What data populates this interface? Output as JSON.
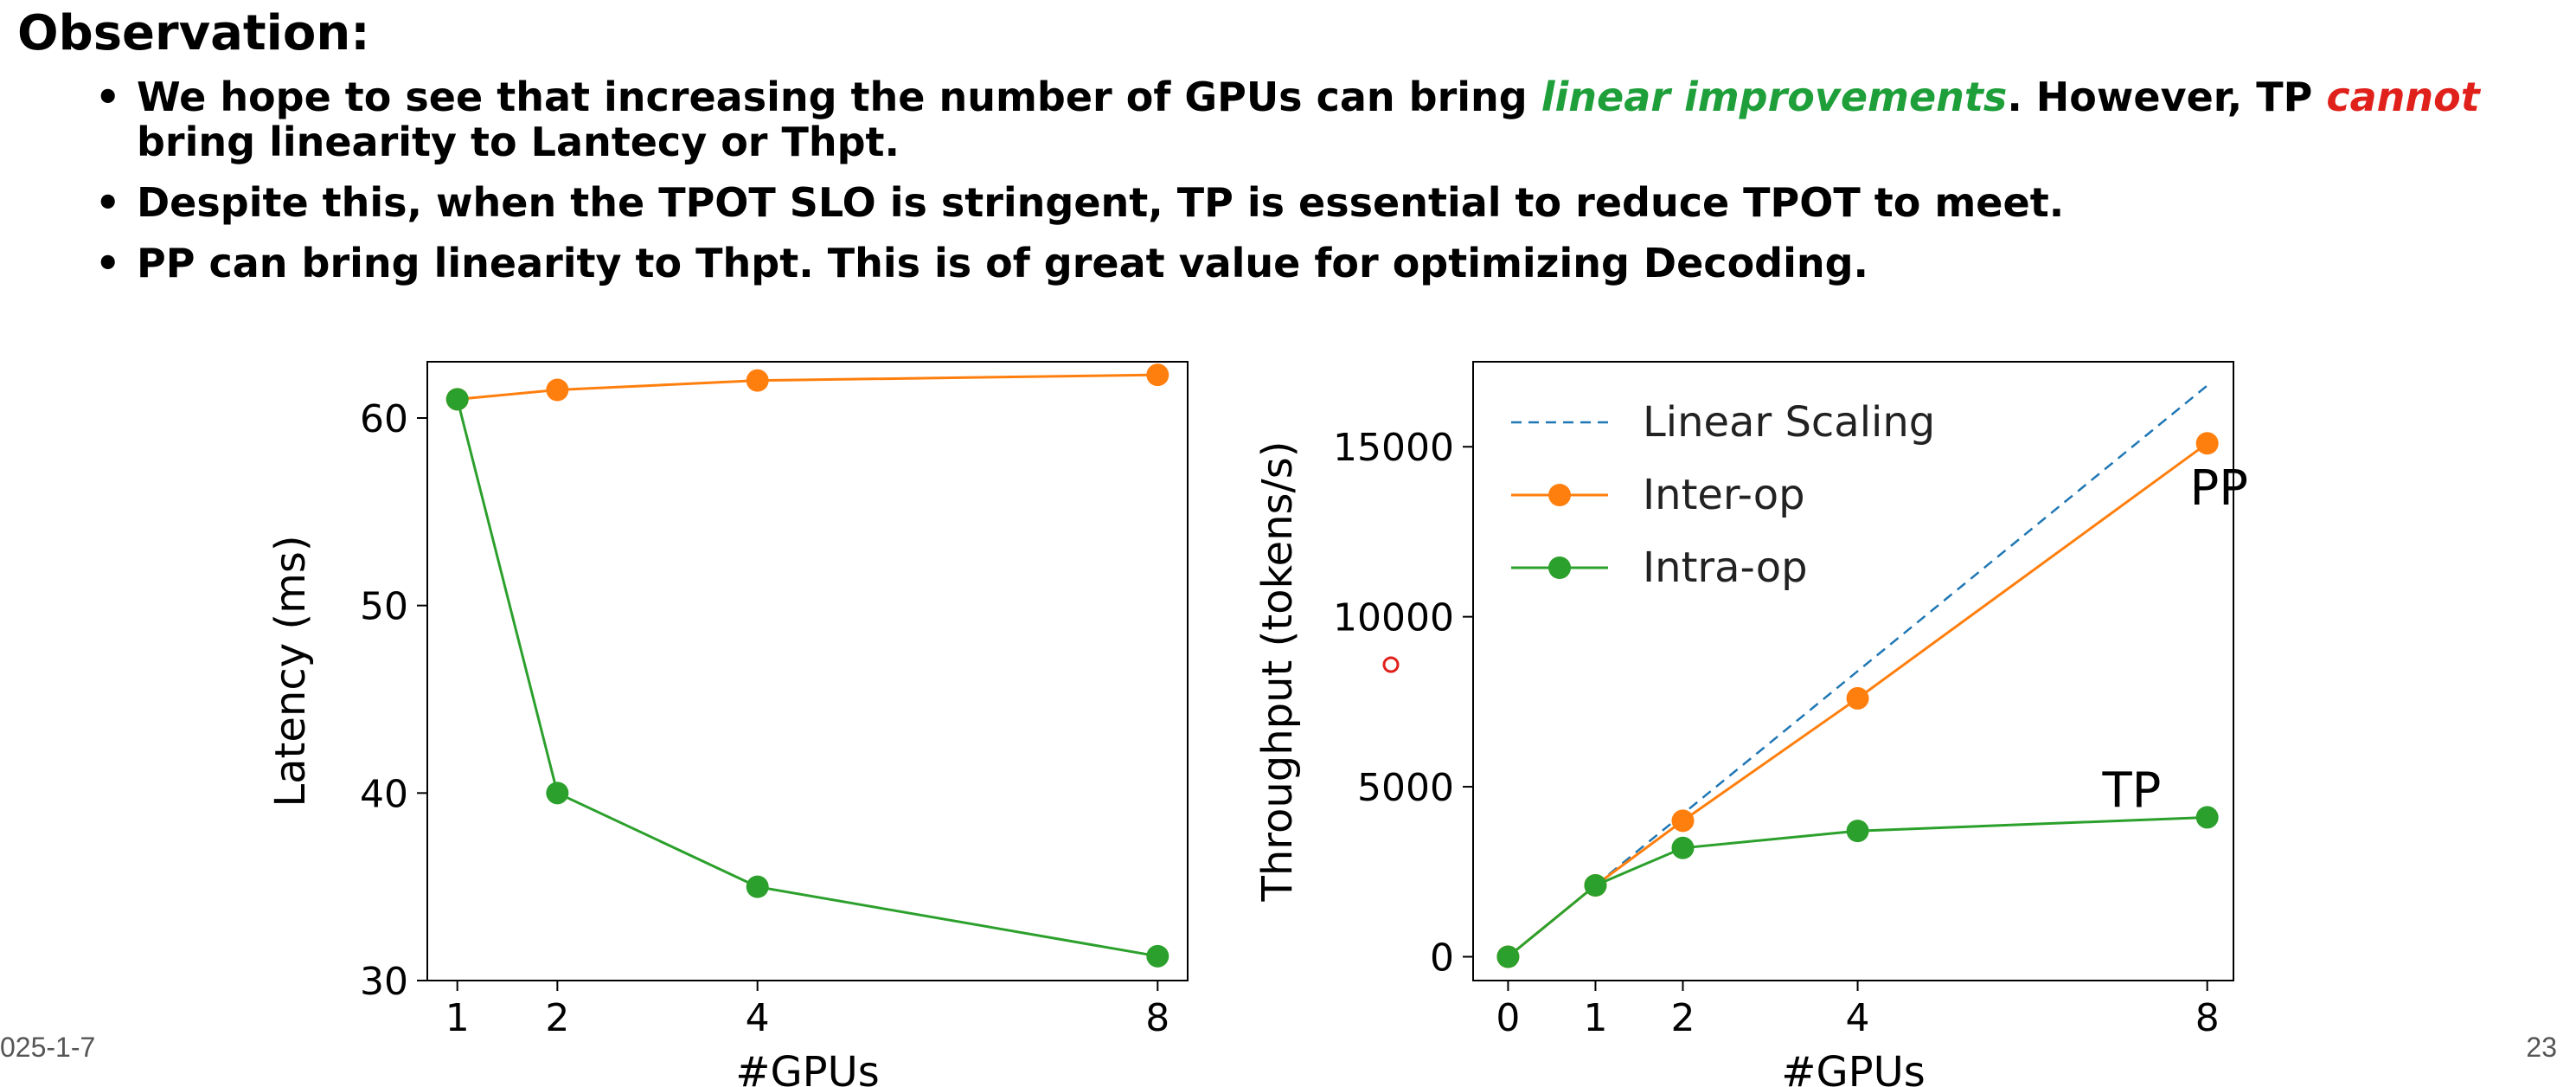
{
  "slide": {
    "heading": "Observation:",
    "bullets": [
      {
        "parts": [
          {
            "text": "We hope to see that increasing the number of GPUs can bring ",
            "style": "normal"
          },
          {
            "text": "linear improvements",
            "style": "green"
          },
          {
            "text": ". However, TP ",
            "style": "normal"
          },
          {
            "text": "cannot",
            "style": "red"
          },
          {
            "text": " bring linearity to Lantecy or Thpt.",
            "style": "normal"
          }
        ]
      },
      {
        "parts": [
          {
            "text": "Despite this, when the TPOT SLO is stringent, TP is essential to reduce TPOT to meet.",
            "style": "normal"
          }
        ]
      },
      {
        "parts": [
          {
            "text": "PP can bring linearity to Thpt. This is of great value for optimizing Decoding.",
            "style": "normal"
          }
        ]
      }
    ],
    "footer_date": "025-1-7",
    "page_number": "23"
  },
  "chart_data": [
    {
      "type": "line",
      "xlabel": "#GPUs",
      "ylabel": "Latency (ms)",
      "x_ticks": [
        "1",
        "2",
        "4",
        "8"
      ],
      "y_ticks": [
        "30",
        "40",
        "50",
        "60"
      ],
      "xlim": [
        0.7,
        8.3
      ],
      "ylim": [
        30,
        63
      ],
      "grid": false,
      "series": [
        {
          "color": "#ff7f0e",
          "x": [
            1,
            2,
            4,
            8
          ],
          "y": [
            61,
            61.5,
            62,
            62.3
          ]
        },
        {
          "color": "#2ca02c",
          "x": [
            1,
            2,
            4,
            8
          ],
          "y": [
            61,
            40,
            35,
            31.3
          ]
        }
      ]
    },
    {
      "type": "line",
      "xlabel": "#GPUs",
      "ylabel": "Throughput (tokens/s)",
      "x_ticks": [
        "0",
        "1",
        "2",
        "4",
        "8"
      ],
      "y_ticks": [
        "0",
        "5000",
        "10000",
        "15000"
      ],
      "xlim": [
        -0.4,
        8.3
      ],
      "ylim": [
        -700,
        17500
      ],
      "grid": false,
      "legend": "top-left",
      "series": [
        {
          "name": "Linear Scaling",
          "color": "#1f77b4",
          "style": "dashed",
          "x": [
            1,
            8
          ],
          "y": [
            2100,
            16800
          ]
        },
        {
          "name": "Inter-op",
          "color": "#ff7f0e",
          "x": [
            0,
            1,
            2,
            4,
            8
          ],
          "y": [
            0,
            2100,
            4000,
            7600,
            15100
          ]
        },
        {
          "name": "Intra-op",
          "color": "#2ca02c",
          "x": [
            0,
            1,
            2,
            4,
            8
          ],
          "y": [
            0,
            2100,
            3200,
            3700,
            4100
          ]
        }
      ],
      "annotations": [
        {
          "text": "PP",
          "x": 7.8,
          "y": 13300
        },
        {
          "text": "TP",
          "x": 6.8,
          "y": 4400
        }
      ]
    }
  ]
}
